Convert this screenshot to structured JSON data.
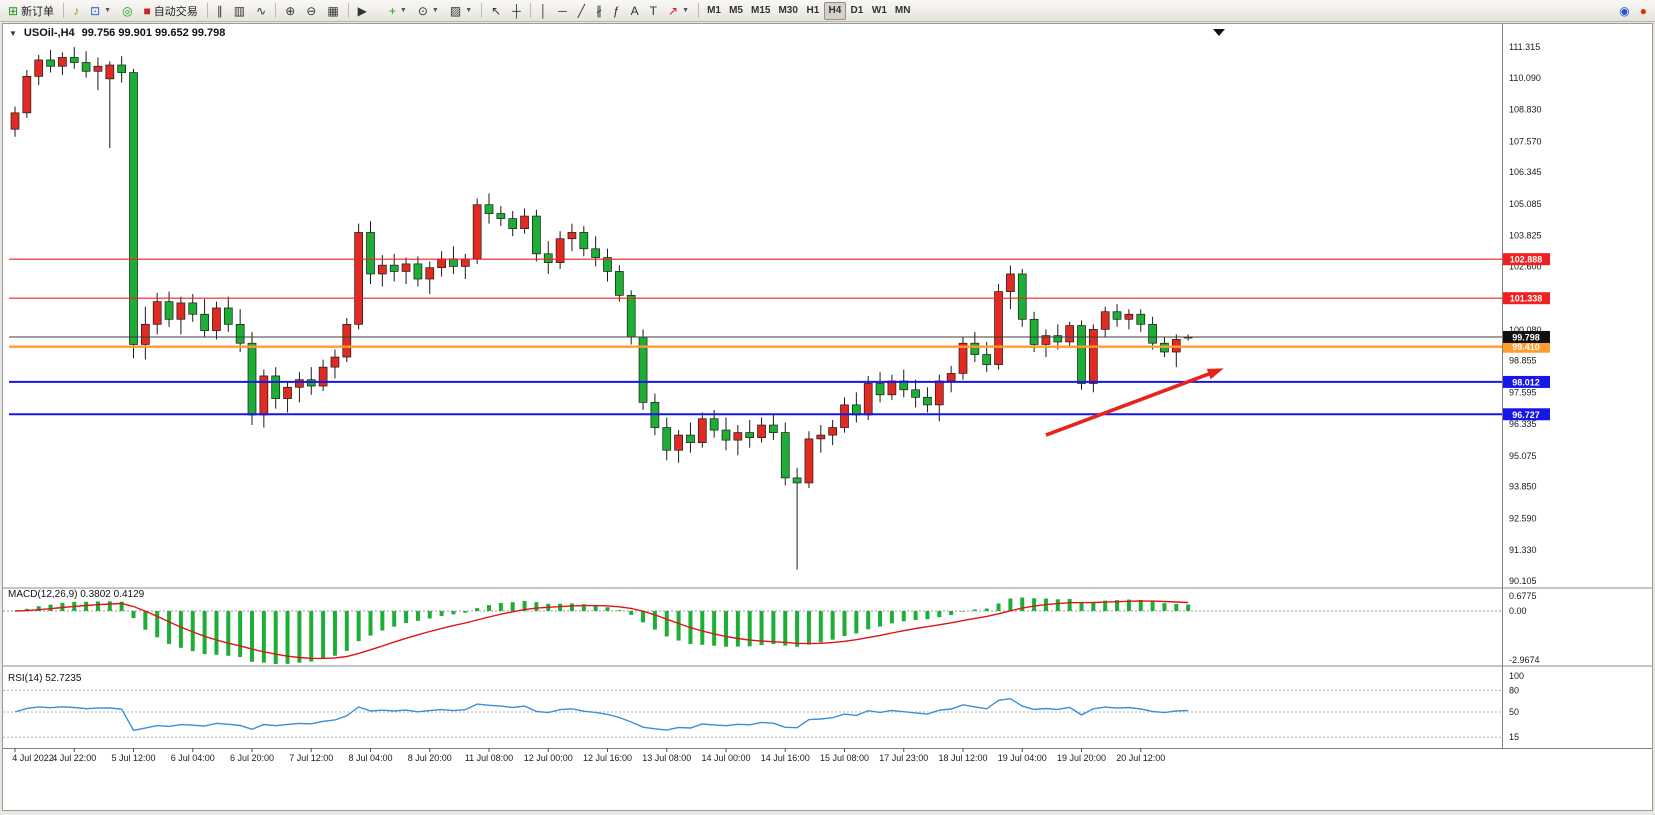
{
  "ui": {
    "collapse_glyph": "▼"
  },
  "toolbar": {
    "buttons": [
      {
        "name": "new-order-button",
        "glyph": "⊞",
        "glyph_color": "#1a9b1a",
        "label": "新订单"
      },
      {
        "name": "sep"
      },
      {
        "name": "sound-button",
        "glyph": "♪",
        "glyph_color": "#b8860b"
      },
      {
        "name": "new-chart-button",
        "glyph": "⊡",
        "glyph_color": "#2255cc",
        "dropdown": true
      },
      {
        "name": "profiles-button",
        "glyph": "◎",
        "glyph_color": "#1a9b1a"
      },
      {
        "name": "autotrading-button",
        "glyph": "■",
        "glyph_color": "#cc2222",
        "label": "自动交易"
      },
      {
        "name": "sep"
      },
      {
        "name": "bars-button",
        "glyph": "∥",
        "glyph_color": "#333333"
      },
      {
        "name": "candles-button",
        "glyph": "▥",
        "glyph_color": "#333333"
      },
      {
        "name": "line-chart-button",
        "glyph": "∿",
        "glyph_color": "#333333"
      },
      {
        "name": "sep"
      },
      {
        "name": "zoom-in-button",
        "glyph": "⊕",
        "glyph_color": "#333333"
      },
      {
        "name": "zoom-out-button",
        "glyph": "⊖",
        "glyph_color": "#333333"
      },
      {
        "name": "tile-windows-button",
        "glyph": "▦",
        "glyph_color": "#333333"
      },
      {
        "name": "sep"
      },
      {
        "name": "auto-scroll-button",
        "glyph": "▶",
        "glyph_color": "#333333"
      },
      {
        "name": "chart-shift-button",
        "glyph": "�païen",
        "glyph_color": "#333333"
      },
      {
        "name": "indicators-button",
        "glyph": "+",
        "glyph_color": "#1a9b1a",
        "dropdown": true
      },
      {
        "name": "period-button",
        "glyph": "⊙",
        "glyph_color": "#333333",
        "dropdown": true
      },
      {
        "name": "templates-button",
        "glyph": "▨",
        "glyph_color": "#333333",
        "dropdown": true
      },
      {
        "name": "sep"
      },
      {
        "name": "cursor-button",
        "glyph": "↖",
        "glyph_color": "#333333"
      },
      {
        "name": "crosshair-button",
        "glyph": "┼",
        "glyph_color": "#333333"
      },
      {
        "name": "sep"
      },
      {
        "name": "vertical-line-button",
        "glyph": "│",
        "glyph_color": "#333333"
      },
      {
        "name": "horizontal-line-button",
        "glyph": "─",
        "glyph_color": "#333333"
      },
      {
        "name": "trendline-button",
        "glyph": "╱",
        "glyph_color": "#333333"
      },
      {
        "name": "channel-button",
        "glyph": "∦",
        "glyph_color": "#333333"
      },
      {
        "name": "fibonacci-button",
        "glyph": "ƒ",
        "glyph_color": "#333333"
      },
      {
        "name": "text-button",
        "glyph": "A",
        "glyph_color": "#333333"
      },
      {
        "name": "label-button",
        "glyph": "T",
        "glyph_color": "#333333"
      },
      {
        "name": "arrows-button",
        "glyph": "↗",
        "glyph_color": "#cc2222",
        "dropdown": true
      },
      {
        "name": "sep"
      }
    ],
    "timeframes": {
      "options": [
        "M1",
        "M5",
        "M15",
        "M30",
        "H1",
        "H4",
        "D1",
        "W1",
        "MN"
      ],
      "active": "H4"
    },
    "right_buttons": [
      {
        "name": "community-button",
        "glyph": "◉",
        "glyph_color": "#2255cc"
      },
      {
        "name": "alert-button",
        "glyph": "●",
        "glyph_color": "#e03000"
      }
    ]
  },
  "chart_data": {
    "type": "candlestick",
    "title": "USOil-,H4",
    "ohlc_text": "99.756 99.901 99.652 99.798",
    "ohlc_current": {
      "open": 99.756,
      "high": 99.901,
      "low": 99.652,
      "close": 99.798
    },
    "colors": {
      "up": "#e02a22",
      "down": "#1cae35",
      "wick": "#1a1a1a",
      "macd_hist": "#1cae35",
      "macd_signal": "#e01414",
      "rsi": "#3a8fd8",
      "bid_line": "#3c3c3c",
      "bid_box": "#101010"
    },
    "y_axis_ticks": [
      111.315,
      110.09,
      108.83,
      107.57,
      106.345,
      105.085,
      103.825,
      102.6,
      100.08,
      98.855,
      97.595,
      96.335,
      95.075,
      93.85,
      92.59,
      91.33,
      90.105
    ],
    "x_labels": [
      "4 Jul 2022",
      "4 Jul 22:00",
      "5 Jul 12:00",
      "6 Jul 04:00",
      "6 Jul 20:00",
      "7 Jul 12:00",
      "8 Jul 04:00",
      "8 Jul 20:00",
      "11 Jul 08:00",
      "12 Jul 00:00",
      "12 Jul 16:00",
      "13 Jul 08:00",
      "14 Jul 00:00",
      "14 Jul 16:00",
      "15 Jul 08:00",
      "17 Jul 23:00",
      "18 Jul 12:00",
      "19 Jul 04:00",
      "19 Jul 20:00",
      "20 Jul 12:00"
    ],
    "levels": [
      {
        "price": 102.888,
        "label": "102.888",
        "color": "#f02020",
        "width": 1.2
      },
      {
        "price": 101.338,
        "label": "101.338",
        "color": "#f02020",
        "width": 1.2
      },
      {
        "price": 99.41,
        "label": "99.410",
        "color": "#ff9c2e",
        "width": 2.4
      },
      {
        "price": 98.012,
        "label": "98.012",
        "color": "#1616e8",
        "width": 2
      },
      {
        "price": 96.727,
        "label": "96.727",
        "color": "#1616e8",
        "width": 2
      }
    ],
    "bid": {
      "price": 99.798,
      "label": "99.798"
    },
    "arrow": {
      "from_bar": 87,
      "from_price": 95.9,
      "to_bar": 102,
      "to_price": 98.55,
      "color": "#e8231a"
    },
    "indicators": [
      {
        "name": "MACD",
        "params": "12,26,9",
        "label": "MACD(12,26,9) 0.3802 0.4129",
        "values": [
          0.3802,
          0.4129
        ],
        "scale_labels": [
          "0.6775",
          "0.00",
          "-2.9674"
        ]
      },
      {
        "name": "RSI",
        "params": "14",
        "label": "RSI(14) 52.7235",
        "value": 52.7235,
        "levels": [
          80,
          50,
          15
        ],
        "scale_labels": [
          100,
          80,
          50,
          15
        ]
      }
    ],
    "candles": [
      [
        108.05,
        108.95,
        107.75,
        108.7
      ],
      [
        108.7,
        110.4,
        108.5,
        110.15
      ],
      [
        110.15,
        111.0,
        109.8,
        110.8
      ],
      [
        110.8,
        111.2,
        110.3,
        110.55
      ],
      [
        110.55,
        111.1,
        110.2,
        110.9
      ],
      [
        110.9,
        111.31,
        110.45,
        110.7
      ],
      [
        110.7,
        111.15,
        110.1,
        110.35
      ],
      [
        110.35,
        110.9,
        109.6,
        110.55
      ],
      [
        110.05,
        110.75,
        107.3,
        110.6
      ],
      [
        110.6,
        110.95,
        109.9,
        110.3
      ],
      [
        110.3,
        110.45,
        98.95,
        99.5
      ],
      [
        99.5,
        101.0,
        98.9,
        100.3
      ],
      [
        100.3,
        101.55,
        99.9,
        101.2
      ],
      [
        101.2,
        101.6,
        100.2,
        100.5
      ],
      [
        100.5,
        101.4,
        99.9,
        101.15
      ],
      [
        101.15,
        101.5,
        100.4,
        100.7
      ],
      [
        100.7,
        101.3,
        99.8,
        100.05
      ],
      [
        100.05,
        101.2,
        99.7,
        100.95
      ],
      [
        100.95,
        101.4,
        100.0,
        100.3
      ],
      [
        100.3,
        100.9,
        99.2,
        99.55
      ],
      [
        99.55,
        100.0,
        96.3,
        96.7
      ],
      [
        96.7,
        98.5,
        96.2,
        98.25
      ],
      [
        98.25,
        98.6,
        96.95,
        97.35
      ],
      [
        97.35,
        98.0,
        96.8,
        97.8
      ],
      [
        97.8,
        98.4,
        97.2,
        98.1
      ],
      [
        98.1,
        98.6,
        97.5,
        97.85
      ],
      [
        97.85,
        98.9,
        97.65,
        98.6
      ],
      [
        98.6,
        99.3,
        98.15,
        99.0
      ],
      [
        99.0,
        100.55,
        98.8,
        100.3
      ],
      [
        100.3,
        104.3,
        100.1,
        103.95
      ],
      [
        103.95,
        104.4,
        101.9,
        102.3
      ],
      [
        102.3,
        103.05,
        101.8,
        102.65
      ],
      [
        102.65,
        103.1,
        102.0,
        102.4
      ],
      [
        102.4,
        102.95,
        101.9,
        102.7
      ],
      [
        102.7,
        103.0,
        101.8,
        102.1
      ],
      [
        102.1,
        102.8,
        101.5,
        102.55
      ],
      [
        102.55,
        103.2,
        102.2,
        102.9
      ],
      [
        102.9,
        103.4,
        102.3,
        102.6
      ],
      [
        102.6,
        103.1,
        102.1,
        102.9
      ],
      [
        102.9,
        105.3,
        102.7,
        105.05
      ],
      [
        105.05,
        105.5,
        104.3,
        104.7
      ],
      [
        104.7,
        105.0,
        104.2,
        104.5
      ],
      [
        104.5,
        104.8,
        103.8,
        104.1
      ],
      [
        104.1,
        104.9,
        103.9,
        104.6
      ],
      [
        104.6,
        104.85,
        102.8,
        103.1
      ],
      [
        103.1,
        103.6,
        102.3,
        102.75
      ],
      [
        102.75,
        104.0,
        102.5,
        103.7
      ],
      [
        103.7,
        104.3,
        103.2,
        103.95
      ],
      [
        103.95,
        104.2,
        103.0,
        103.3
      ],
      [
        103.3,
        103.8,
        102.6,
        102.95
      ],
      [
        102.95,
        103.3,
        102.0,
        102.4
      ],
      [
        102.4,
        102.65,
        101.2,
        101.45
      ],
      [
        101.45,
        101.65,
        99.5,
        99.8
      ],
      [
        99.8,
        100.1,
        96.9,
        97.2
      ],
      [
        97.2,
        97.55,
        95.9,
        96.2
      ],
      [
        96.2,
        96.6,
        94.9,
        95.3
      ],
      [
        95.3,
        96.1,
        94.8,
        95.9
      ],
      [
        95.9,
        96.4,
        95.2,
        95.6
      ],
      [
        95.6,
        96.8,
        95.4,
        96.55
      ],
      [
        96.55,
        96.9,
        95.8,
        96.1
      ],
      [
        96.1,
        96.6,
        95.3,
        95.7
      ],
      [
        95.7,
        96.3,
        95.1,
        96.0
      ],
      [
        96.0,
        96.5,
        95.4,
        95.8
      ],
      [
        95.8,
        96.6,
        95.6,
        96.3
      ],
      [
        96.3,
        96.7,
        95.7,
        96.0
      ],
      [
        96.0,
        96.4,
        93.9,
        94.2
      ],
      [
        94.2,
        94.6,
        90.56,
        94.0
      ],
      [
        94.0,
        96.05,
        93.8,
        95.75
      ],
      [
        95.75,
        96.3,
        95.2,
        95.9
      ],
      [
        95.9,
        96.5,
        95.5,
        96.2
      ],
      [
        96.2,
        97.4,
        96.0,
        97.1
      ],
      [
        97.1,
        97.6,
        96.4,
        96.7
      ],
      [
        96.7,
        98.25,
        96.5,
        97.95
      ],
      [
        97.95,
        98.4,
        97.2,
        97.5
      ],
      [
        97.5,
        98.3,
        97.3,
        98.05
      ],
      [
        98.05,
        98.5,
        97.4,
        97.7
      ],
      [
        97.7,
        98.1,
        97.0,
        97.4
      ],
      [
        97.4,
        97.8,
        96.8,
        97.1
      ],
      [
        97.1,
        98.3,
        96.45,
        98.05
      ],
      [
        98.05,
        98.65,
        97.6,
        98.35
      ],
      [
        98.35,
        99.8,
        98.1,
        99.55
      ],
      [
        99.55,
        100.0,
        98.8,
        99.1
      ],
      [
        99.1,
        99.6,
        98.4,
        98.7
      ],
      [
        98.7,
        101.9,
        98.5,
        101.6
      ],
      [
        101.6,
        102.63,
        100.9,
        102.3
      ],
      [
        102.3,
        102.5,
        100.2,
        100.5
      ],
      [
        100.5,
        100.8,
        99.2,
        99.5
      ],
      [
        99.5,
        100.1,
        99.0,
        99.85
      ],
      [
        99.85,
        100.3,
        99.3,
        99.6
      ],
      [
        99.6,
        100.4,
        99.4,
        100.25
      ],
      [
        100.25,
        100.45,
        97.7,
        97.95
      ],
      [
        97.95,
        100.3,
        97.6,
        100.1
      ],
      [
        100.1,
        101.0,
        99.8,
        100.8
      ],
      [
        100.8,
        101.1,
        100.2,
        100.5
      ],
      [
        100.5,
        100.9,
        100.1,
        100.7
      ],
      [
        100.7,
        100.9,
        100.0,
        100.3
      ],
      [
        100.3,
        100.6,
        99.3,
        99.55
      ],
      [
        99.55,
        99.8,
        99.0,
        99.2
      ],
      [
        99.2,
        99.9,
        98.6,
        99.7
      ],
      [
        99.756,
        99.901,
        99.652,
        99.798
      ]
    ]
  }
}
